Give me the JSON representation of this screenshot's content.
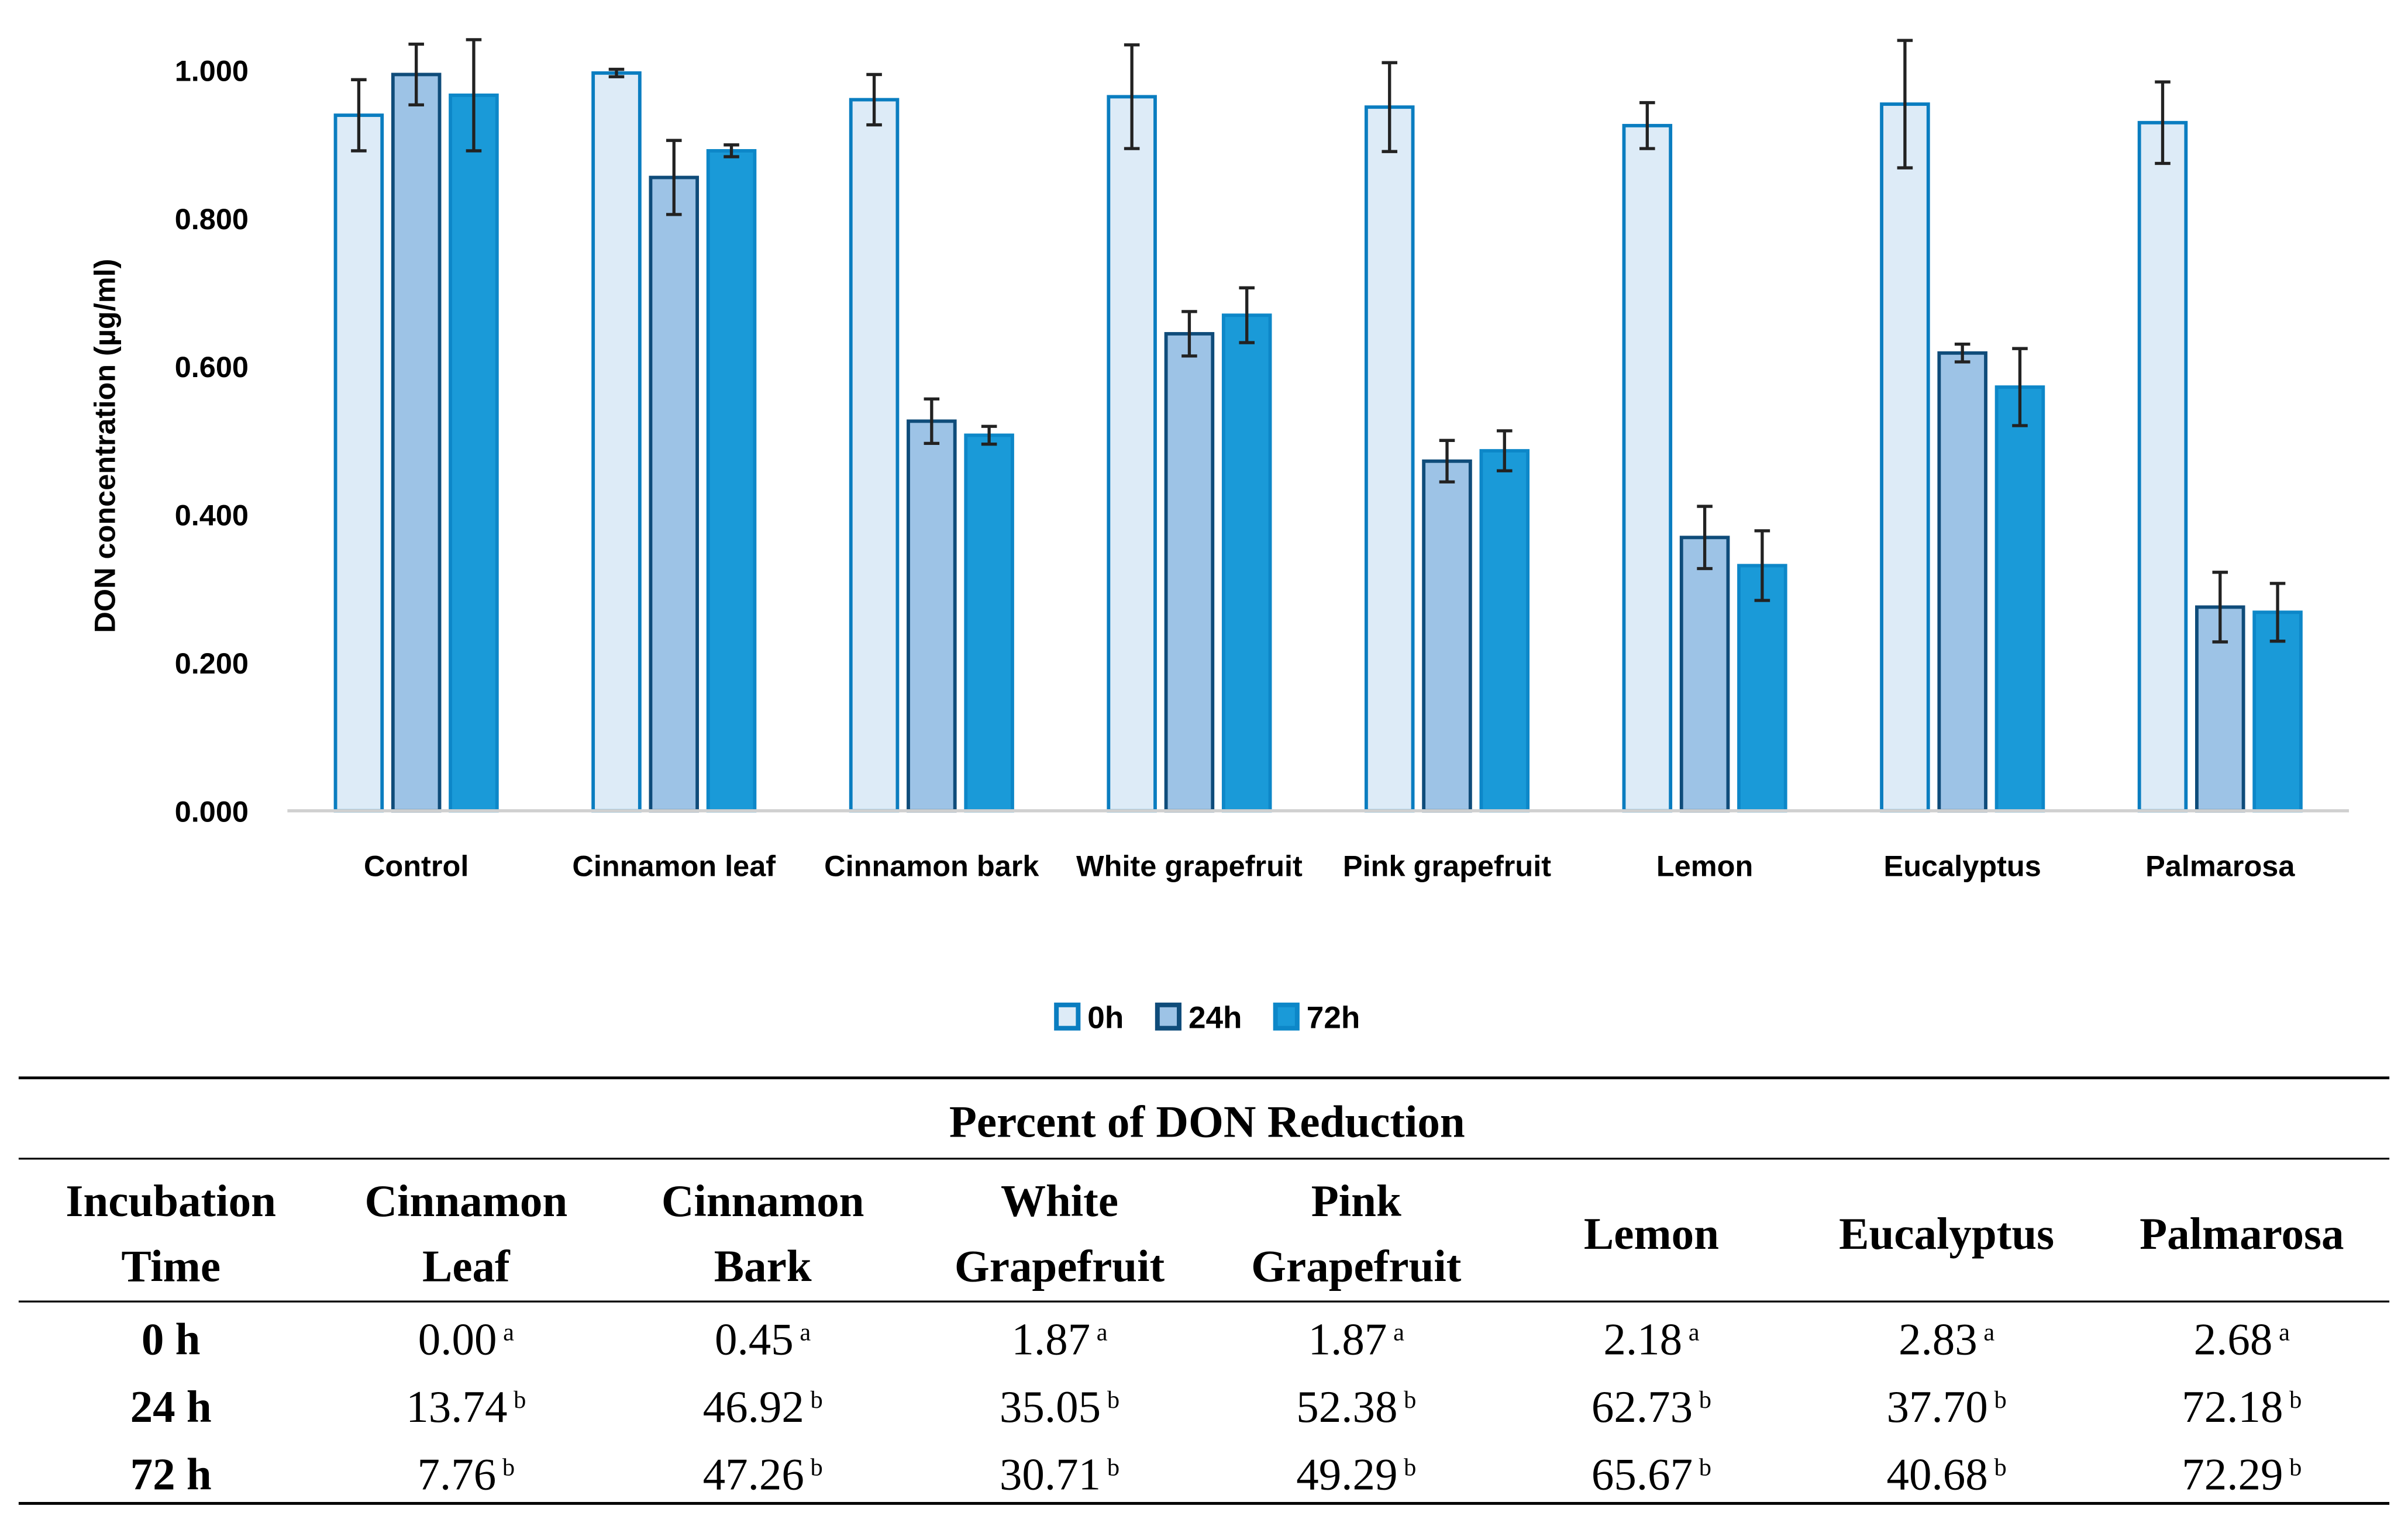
{
  "chart_data": {
    "type": "bar",
    "ylabel": "DON concentration (µg/ml)",
    "ylim": [
      0,
      1.0
    ],
    "yticks": [
      "0.000",
      "0.200",
      "0.400",
      "0.600",
      "0.800",
      "1.000"
    ],
    "grid": false,
    "legend_position": "bottom",
    "categories": [
      "Control",
      "Cinnamon leaf",
      "Cinnamon bark",
      "White grapefruit",
      "Pink grapefruit",
      "Lemon",
      "Eucalyptus",
      "Palmarosa"
    ],
    "series": [
      {
        "name": "0h",
        "fill": "#ddebf7",
        "stroke": "#0a7dc0",
        "values": [
          0.939,
          0.996,
          0.96,
          0.964,
          0.95,
          0.925,
          0.954,
          0.929
        ],
        "errors": [
          0.048,
          0.005,
          0.034,
          0.07,
          0.06,
          0.031,
          0.086,
          0.055
        ]
      },
      {
        "name": "24h",
        "fill": "#9dc3e6",
        "stroke": "#0f4c7a",
        "values": [
          0.994,
          0.855,
          0.526,
          0.644,
          0.472,
          0.369,
          0.618,
          0.275
        ],
        "errors": [
          0.041,
          0.05,
          0.03,
          0.03,
          0.028,
          0.042,
          0.012,
          0.047
        ]
      },
      {
        "name": "72h",
        "fill": "#1a9ad8",
        "stroke": "#0d87c8",
        "values": [
          0.966,
          0.891,
          0.507,
          0.669,
          0.486,
          0.331,
          0.572,
          0.268
        ],
        "errors": [
          0.075,
          0.008,
          0.012,
          0.037,
          0.027,
          0.047,
          0.052,
          0.039
        ]
      }
    ]
  },
  "table": {
    "title": "Percent of DON Reduction",
    "headers": [
      [
        "Incubation",
        "Time"
      ],
      [
        "Cinnamon",
        "Leaf"
      ],
      [
        "Cinnamon",
        "Bark"
      ],
      [
        "White",
        "Grapefruit"
      ],
      [
        "Pink",
        "Grapefruit"
      ],
      [
        "Lemon"
      ],
      [
        "Eucalyptus"
      ],
      [
        "Palmarosa"
      ]
    ],
    "rows": [
      {
        "time": "0 h",
        "cells": [
          [
            "0.00",
            "a"
          ],
          [
            "0.45",
            "a"
          ],
          [
            "1.87",
            "a"
          ],
          [
            "1.87",
            "a"
          ],
          [
            "2.18",
            "a"
          ],
          [
            "2.83",
            "a"
          ],
          [
            "2.68",
            "a"
          ]
        ]
      },
      {
        "time": "24 h",
        "cells": [
          [
            "13.74",
            "b"
          ],
          [
            "46.92",
            "b"
          ],
          [
            "35.05",
            "b"
          ],
          [
            "52.38",
            "b"
          ],
          [
            "62.73",
            "b"
          ],
          [
            "37.70",
            "b"
          ],
          [
            "72.18",
            "b"
          ]
        ]
      },
      {
        "time": "72 h",
        "cells": [
          [
            "7.76",
            "b"
          ],
          [
            "47.26",
            "b"
          ],
          [
            "30.71",
            "b"
          ],
          [
            "49.29",
            "b"
          ],
          [
            "65.67",
            "b"
          ],
          [
            "40.68",
            "b"
          ],
          [
            "72.29",
            "b"
          ]
        ]
      }
    ]
  }
}
